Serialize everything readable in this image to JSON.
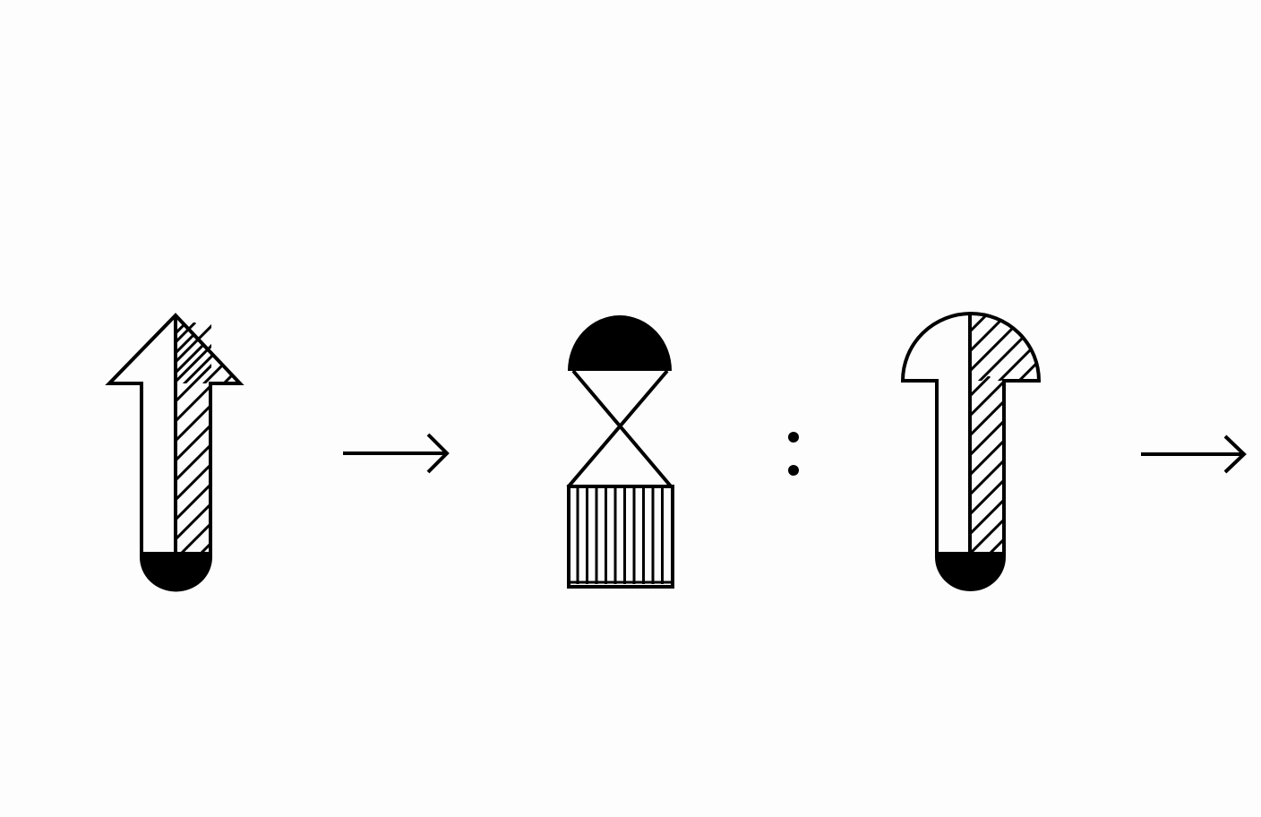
{
  "figure": {
    "background_color": "#fdfdfd",
    "ink_color": "#000000",
    "fill_color": "#ffffff",
    "sequence": [
      {
        "kind": "symbol",
        "name": "arrow-shaft-symbol",
        "top": "arrowhead",
        "left_half": "blank",
        "right_half": "diagonal-hatch",
        "bottom": "solid-cap"
      },
      {
        "kind": "connector",
        "name": "right-arrow-connector-1"
      },
      {
        "kind": "symbol",
        "name": "hourglass-symbol",
        "top": "solid-dome",
        "middle": "crossed-lines",
        "bottom": "vertical-stripes"
      },
      {
        "kind": "separator",
        "name": "colon-separator"
      },
      {
        "kind": "symbol",
        "name": "mushroom-shaft-symbol",
        "top": "half-dome",
        "left_half": "blank",
        "right_half": "diagonal-hatch",
        "bottom": "solid-cap"
      },
      {
        "kind": "connector",
        "name": "right-arrow-connector-2"
      }
    ]
  }
}
